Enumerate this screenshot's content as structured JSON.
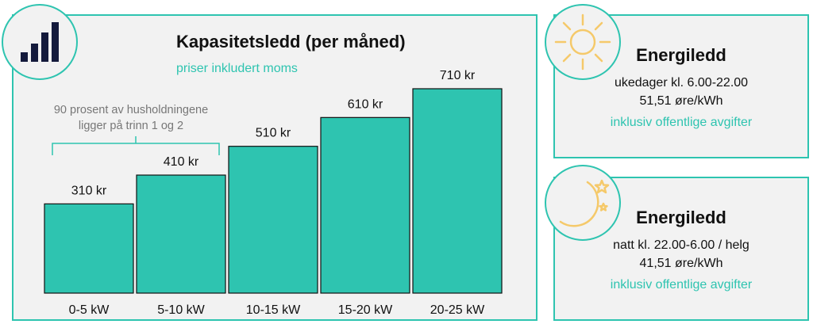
{
  "chart_data": {
    "type": "bar",
    "title": "Kapasitetsledd (per måned)",
    "subtitle": "priser inkludert moms",
    "categories": [
      "0-5 kW",
      "5-10 kW",
      "10-15 kW",
      "15-20 kW",
      "20-25 kW"
    ],
    "values": [
      310,
      410,
      510,
      610,
      710
    ],
    "value_labels": [
      "310 kr",
      "410 kr",
      "510 kr",
      "610 kr",
      "710 kr"
    ],
    "ylim": [
      0,
      710
    ],
    "bar_color": "#2ec4b0",
    "annotation": {
      "lines": [
        "90 prosent av husholdningene",
        "ligger på trinn 1 og 2"
      ],
      "spans_categories": [
        "0-5 kW",
        "5-10 kW"
      ]
    },
    "grid": false
  },
  "cards": [
    {
      "icon": "sun-icon",
      "title": "Energiledd",
      "line1": "ukedager kl. 6.00-22.00",
      "line2": "51,51 øre/kWh",
      "note": "inklusiv offentlige avgifter"
    },
    {
      "icon": "moon-stars-icon",
      "title": "Energiledd",
      "line1": "natt kl. 22.00-6.00 / helg",
      "line2": "41,51 øre/kWh",
      "note": "inklusiv offentlige avgifter"
    }
  ],
  "colors": {
    "accent": "#2ec4b0",
    "icon_dark": "#141a3c",
    "icon_yellow": "#f5c96a",
    "panel_bg": "#f2f2f2"
  }
}
